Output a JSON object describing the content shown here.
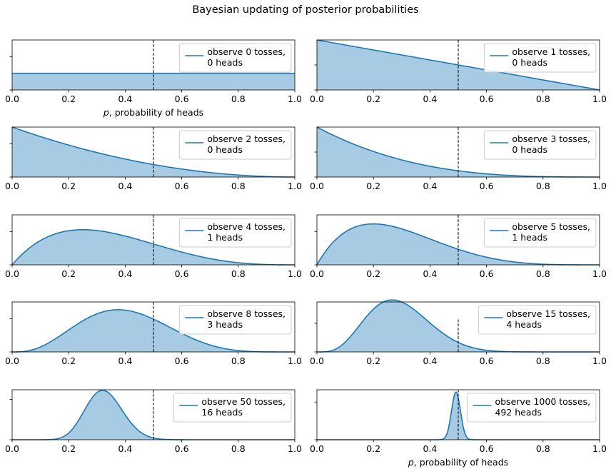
{
  "chart_data": {
    "type": "area",
    "title": "Bayesian updating of posterior probabilities",
    "xlabel": "p, probability of heads",
    "xlim": [
      0.0,
      1.0
    ],
    "x_ticks": [
      "0.0",
      "0.2",
      "0.4",
      "0.6",
      "0.8",
      "1.0"
    ],
    "reference_line_x": 0.5,
    "colors": {
      "line": "#1f77b4",
      "fill": "#a6cbe3",
      "reference": "#000000"
    },
    "panels": [
      {
        "tosses": 0,
        "heads": 0,
        "legend": [
          "observe 0 tosses,",
          " 0 heads"
        ],
        "ymax": 3.0,
        "y_ticks": [
          0,
          2
        ],
        "show_xlabel": true
      },
      {
        "tosses": 1,
        "heads": 0,
        "legend": [
          "observe 1 tosses,",
          " 0 heads"
        ],
        "ymax": 2.0,
        "y_ticks": [
          0,
          1
        ],
        "show_xlabel": false
      },
      {
        "tosses": 2,
        "heads": 0,
        "legend": [
          "observe 2 tosses,",
          " 0 heads"
        ],
        "ymax": 3.0,
        "y_ticks": [
          0,
          2
        ],
        "show_xlabel": false
      },
      {
        "tosses": 3,
        "heads": 0,
        "legend": [
          "observe 3 tosses,",
          " 0 heads"
        ],
        "ymax": 4.0,
        "y_ticks": [
          0,
          2
        ],
        "show_xlabel": false
      },
      {
        "tosses": 4,
        "heads": 1,
        "legend": [
          "observe 4 tosses,",
          " 1 heads"
        ],
        "ymax": 3.0,
        "y_ticks": [
          0,
          2
        ],
        "show_xlabel": false
      },
      {
        "tosses": 5,
        "heads": 1,
        "legend": [
          "observe 5 tosses,",
          " 1 heads"
        ],
        "ymax": 3.0,
        "y_ticks": [
          0,
          2
        ],
        "show_xlabel": false
      },
      {
        "tosses": 8,
        "heads": 3,
        "legend": [
          "observe 8 tosses,",
          " 3 heads"
        ],
        "ymax": 3.0,
        "y_ticks": [
          0,
          2
        ],
        "show_xlabel": false
      },
      {
        "tosses": 15,
        "heads": 4,
        "legend": [
          "observe 15 tosses,",
          " 4 heads"
        ],
        "ymax": 3.5,
        "y_ticks": [
          0,
          2
        ],
        "show_xlabel": false
      },
      {
        "tosses": 50,
        "heads": 16,
        "legend": [
          "observe 50 tosses,",
          " 16 heads"
        ],
        "ymax": 6.2,
        "y_ticks": [
          0,
          5
        ],
        "show_xlabel": false
      },
      {
        "tosses": 1000,
        "heads": 492,
        "legend": [
          "observe 1000 tosses,",
          " 492 heads"
        ],
        "ymax": 26.5,
        "y_ticks": [
          0,
          20
        ],
        "show_xlabel": true
      }
    ]
  }
}
